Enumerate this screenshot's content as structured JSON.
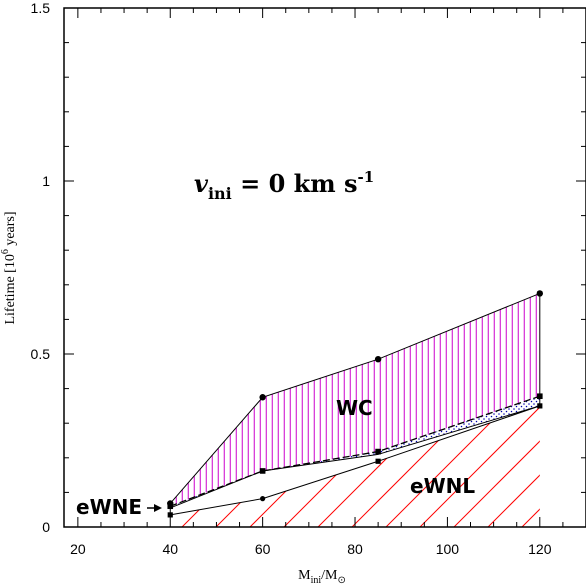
{
  "chart_data": {
    "type": "area",
    "xlabel": {
      "main": "M",
      "sub1": "ini",
      "sep": "/M",
      "sub2": "⊙"
    },
    "ylabel": {
      "pre": "Lifetime [10",
      "sup": "6",
      "post": " years]"
    },
    "xlim": [
      17,
      130
    ],
    "ylim": [
      0,
      1.5
    ],
    "xticks": [
      20,
      40,
      60,
      80,
      100,
      120
    ],
    "yticks": [
      0,
      0.5,
      1,
      1.5
    ],
    "ytick_labels": [
      "0",
      "0.5",
      "1",
      "1.5"
    ],
    "annotation": {
      "v": "v",
      "sub": "ini",
      "text": " = 0 km s",
      "sup": "-1"
    },
    "region_labels": {
      "wc": "WC",
      "ewnl": "eWNL",
      "ewne": "eWNE"
    },
    "series": [
      {
        "x": [
          40,
          60,
          85,
          120
        ],
        "values": [
          0.068,
          0.375,
          0.485,
          0.675
        ],
        "marker": "circle",
        "dash": "solid"
      },
      {
        "x": [
          40,
          60,
          85,
          120
        ],
        "values": [
          0.06,
          0.162,
          0.218,
          0.378
        ],
        "marker": "square",
        "dash": "dashed"
      },
      {
        "x": [
          40,
          60,
          85,
          120
        ],
        "values": [
          0.035,
          0.082,
          0.19,
          0.35
        ],
        "marker": "mixed",
        "dash": "solid"
      },
      {
        "x": [
          40,
          60,
          85,
          120
        ],
        "values": [
          0.055,
          0.162,
          0.21,
          0.35
        ],
        "marker": "none",
        "dash": "solid"
      }
    ],
    "colors": {
      "wc_hatch": "#cc00cc",
      "ewne_dots": "#0000aa",
      "ewnl_hatch": "#ff0000",
      "axis": "#000000"
    }
  }
}
